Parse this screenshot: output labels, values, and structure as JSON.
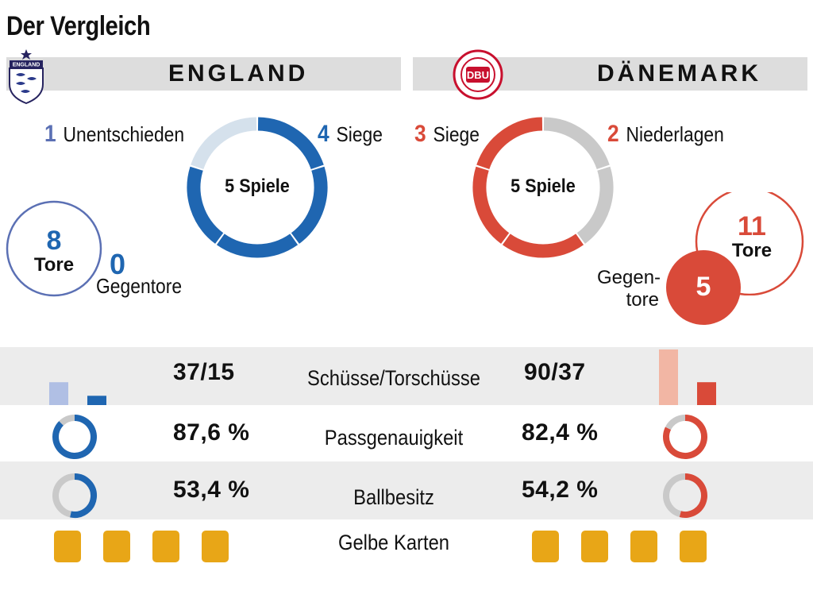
{
  "title": "Der Vergleich",
  "colors": {
    "england": "#1f66b1",
    "england_light": "#d5e1ec",
    "england_circle": "#5b70b4",
    "denmark": "#d94a39",
    "denmark_light": "#f2b6a4",
    "neutral": "#c9c9c9",
    "band": "#ececec",
    "team_bar": "#dddddd",
    "yellow_card": "#e8a617"
  },
  "england": {
    "name": "ENGLAND",
    "logo_text": "ENGLAND",
    "draws": {
      "value": "1",
      "label": "Unentschieden"
    },
    "wins": {
      "value": "4",
      "label": "Siege"
    },
    "ring_label": "5 Spiele",
    "goals": {
      "value": "8",
      "label": "Tore"
    },
    "conceded": {
      "value": "0",
      "label": "Gegentore"
    }
  },
  "denmark": {
    "name": "DÄNEMARK",
    "logo_text": "DBU",
    "wins": {
      "value": "3",
      "label": "Siege"
    },
    "losses": {
      "value": "2",
      "label": "Niederlagen"
    },
    "ring_label": "5 Spiele",
    "goals": {
      "value": "11",
      "label": "Tore"
    },
    "conceded": {
      "value": "5",
      "label_line1": "Gegen-",
      "label_line2": "tore"
    }
  },
  "stats": {
    "shots": {
      "label": "Schüsse/Torschüsse",
      "england": "37/15",
      "denmark": "90/37"
    },
    "pass": {
      "label": "Passgenauigkeit",
      "england": "87,6 %",
      "denmark": "82,4 %"
    },
    "possession": {
      "label": "Ballbesitz",
      "england": "53,4 %",
      "denmark": "54,2 %"
    },
    "cards": {
      "label": "Gelbe Karten",
      "england": 4,
      "denmark": 4
    }
  },
  "chart_data": [
    {
      "type": "pie",
      "team": "England",
      "categories": [
        "Siege",
        "Unentschieden"
      ],
      "values": [
        4,
        1
      ],
      "center_label": "5 Spiele"
    },
    {
      "type": "pie",
      "team": "Dänemark",
      "categories": [
        "Siege",
        "Niederlagen"
      ],
      "values": [
        3,
        2
      ],
      "center_label": "5 Spiele"
    },
    {
      "type": "bar",
      "metric": "Schüsse/Torschüsse",
      "categories": [
        "Schüsse",
        "Torschüsse"
      ],
      "series": [
        {
          "values": [
            37,
            15
          ]
        },
        {
          "values": [
            90,
            37
          ]
        }
      ]
    },
    {
      "type": "pie",
      "metric": "Passgenauigkeit",
      "series": [
        {
          "values": [
            87.6,
            12.4
          ]
        },
        {
          "values": [
            82.4,
            17.6
          ]
        }
      ]
    },
    {
      "type": "pie",
      "metric": "Ballbesitz",
      "series": [
        {
          "values": [
            53.4,
            46.6
          ]
        },
        {
          "values": [
            54.2,
            45.8
          ]
        }
      ]
    }
  ]
}
